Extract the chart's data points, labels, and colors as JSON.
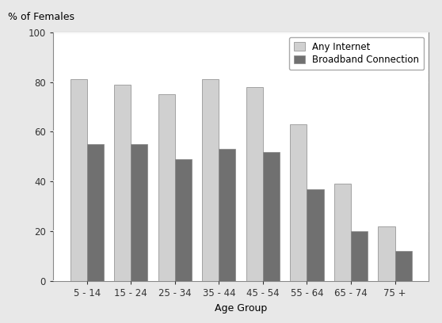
{
  "age_groups": [
    "5 - 14",
    "15 - 24",
    "25 - 34",
    "35 - 44",
    "45 - 54",
    "55 - 64",
    "65 - 74",
    "75 +"
  ],
  "any_internet": [
    81,
    79,
    75,
    81,
    78,
    63,
    39,
    22
  ],
  "broadband": [
    55,
    55,
    49,
    53,
    52,
    37,
    20,
    12
  ],
  "color_any_internet": "#d0d0d0",
  "color_broadband": "#707070",
  "ylabel": "% of Females",
  "xlabel": "Age Group",
  "ylim": [
    0,
    100
  ],
  "yticks": [
    0,
    20,
    40,
    60,
    80,
    100
  ],
  "legend_labels": [
    "Any Internet",
    "Broadband Connection"
  ],
  "grid_color": "#ffffff",
  "background_color": "#ffffff",
  "fig_background": "#e8e8e8",
  "bar_width": 0.38,
  "bar_edge_color": "#888888",
  "bar_edge_width": 0.5
}
